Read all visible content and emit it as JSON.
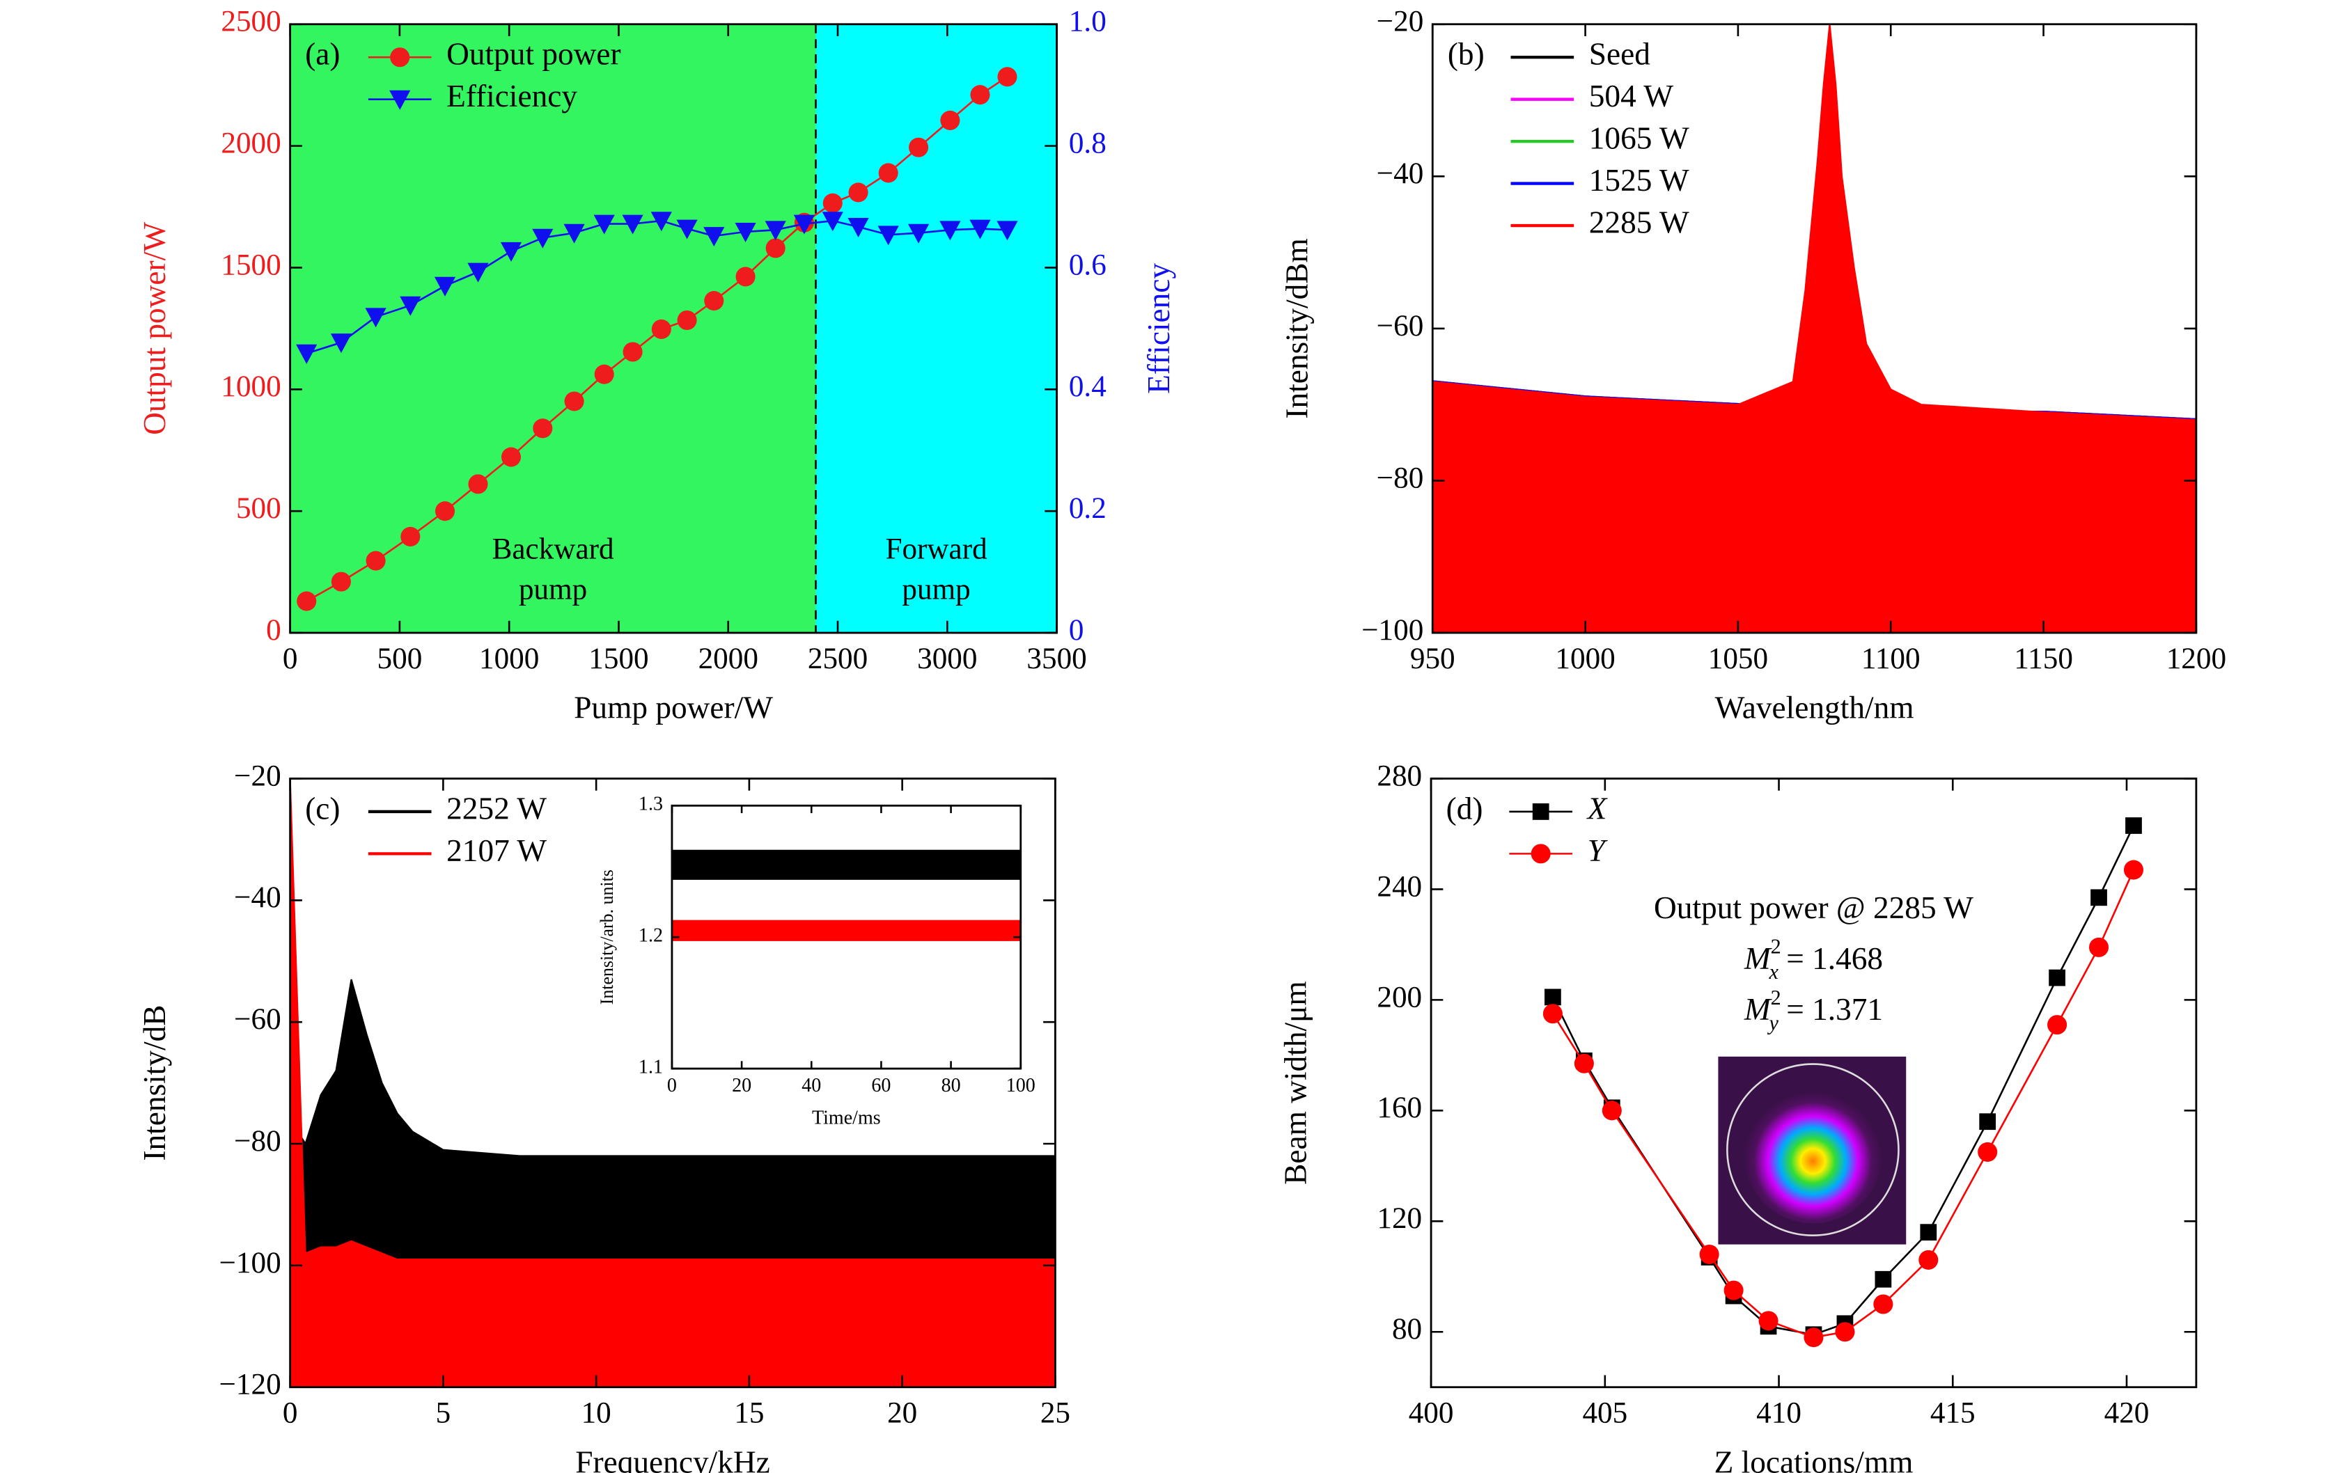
{
  "chart_data": [
    {
      "type": "line",
      "panel_label": "(a)",
      "xlabel": "Pump power/W",
      "ylabel": "Output power/W",
      "y2label": "Efficiency",
      "xlim": [
        0,
        3500
      ],
      "xticks": [
        0,
        500,
        1000,
        1500,
        2000,
        2500,
        3000,
        3500
      ],
      "ylim": [
        0,
        2500
      ],
      "yticks": [
        0,
        500,
        1000,
        1500,
        2000,
        2500
      ],
      "y2lim": [
        0,
        1
      ],
      "y2ticks": [
        0,
        0.2,
        0.4,
        0.6,
        0.8,
        {
          "value": 1,
          "label": "1.0"
        }
      ],
      "legend": "upper left",
      "regions": [
        {
          "x": [
            0,
            2400
          ],
          "color": "#33f560",
          "label": [
            "Backward",
            "pump"
          ]
        },
        {
          "x": [
            2400,
            3500
          ],
          "color": "#00ffff",
          "label": [
            "Forward",
            "pump"
          ]
        }
      ],
      "x": [
        75,
        233,
        391,
        549,
        707,
        858,
        1009,
        1153,
        1297,
        1434,
        1564,
        1695,
        1812,
        1935,
        2079,
        2216,
        2347,
        2477,
        2594,
        2731,
        2869,
        3013,
        3150,
        3274
      ],
      "series": [
        {
          "name": "Output power",
          "color": "#ee1c1c",
          "marker": "circle",
          "values": [
            130,
            210,
            296,
            395,
            500,
            611,
            722,
            840,
            951,
            1062,
            1154,
            1247,
            1284,
            1364,
            1463,
            1580,
            1685,
            1765,
            1809,
            1889,
            1994,
            2105,
            2210,
            2284
          ]
        },
        {
          "name": "Efficiency",
          "color": "#1010ee",
          "marker": "triangle-down",
          "axis": "y2",
          "values": [
            0.459,
            0.477,
            0.519,
            0.538,
            0.57,
            0.593,
            0.627,
            0.649,
            0.657,
            0.672,
            0.672,
            0.677,
            0.664,
            0.652,
            0.659,
            0.662,
            0.672,
            0.677,
            0.667,
            0.654,
            0.657,
            0.662,
            0.664,
            0.662
          ]
        }
      ]
    },
    {
      "type": "line",
      "panel_label": "(b)",
      "xlabel": "Wavelength/nm",
      "ylabel": "Intensity/dBm",
      "xlim": [
        950,
        1200
      ],
      "xticks": [
        950,
        1000,
        1050,
        1100,
        1150,
        1200
      ],
      "ylim": [
        -100,
        -20
      ],
      "yticks": [
        {
          "value": -100,
          "label": "−100"
        },
        {
          "value": -80,
          "label": "−80"
        },
        {
          "value": -60,
          "label": "−60"
        },
        {
          "value": -40,
          "label": "−40"
        },
        {
          "value": -20,
          "label": "−20"
        }
      ],
      "legend": "upper left",
      "x": [
        950,
        1000,
        1050,
        1068,
        1072,
        1076,
        1078,
        1080,
        1082,
        1084,
        1088,
        1092,
        1100,
        1110,
        1150,
        1200
      ],
      "series": [
        {
          "name": "Seed",
          "color": "#000000",
          "values": [
            -67,
            -69,
            -70,
            -71,
            -71,
            -70,
            -50,
            -33,
            -50,
            -70,
            -71,
            -71,
            -71,
            -71,
            -71,
            -72
          ]
        },
        {
          "name": "504 W",
          "color": "#ff00ff",
          "values": [
            -67,
            -69,
            -70,
            -71,
            -70,
            -62,
            -45,
            -30,
            -45,
            -62,
            -70,
            -71,
            -71,
            -71,
            -71,
            -72
          ]
        },
        {
          "name": "1065 W",
          "color": "#22cc22",
          "values": [
            -67,
            -69,
            -70,
            -71,
            -68,
            -55,
            -38,
            -26,
            -38,
            -55,
            -68,
            -71,
            -71,
            -71,
            -71,
            -72
          ]
        },
        {
          "name": "1525 W",
          "color": "#0000ff",
          "values": [
            -67,
            -69,
            -70,
            -70,
            -66,
            -50,
            -35,
            -24,
            -35,
            -50,
            -64,
            -70,
            -71,
            -71,
            -71,
            -72
          ]
        },
        {
          "name": "2285 W",
          "color": "#ff0000",
          "fill": true,
          "values": [
            -67,
            -69,
            -70,
            -67,
            -55,
            -38,
            -28,
            -20,
            -28,
            -40,
            -52,
            -62,
            -68,
            -70,
            -71,
            -72
          ]
        }
      ]
    },
    {
      "type": "line",
      "panel_label": "(c)",
      "xlabel": "Frequency/kHz",
      "ylabel": "Intensity/dB",
      "xlim": [
        0,
        25
      ],
      "xticks": [
        0,
        5,
        10,
        15,
        20,
        25
      ],
      "ylim": [
        -120,
        -20
      ],
      "yticks": [
        {
          "value": -120,
          "label": "−120"
        },
        {
          "value": -100,
          "label": "−100"
        },
        {
          "value": -80,
          "label": "−80"
        },
        {
          "value": -60,
          "label": "−60"
        },
        {
          "value": -40,
          "label": "−40"
        },
        {
          "value": -20,
          "label": "−20"
        }
      ],
      "legend": "upper left",
      "x": [
        0,
        0.5,
        1,
        1.5,
        2,
        2.5,
        3,
        3.5,
        4,
        5,
        7.5,
        10,
        12.5,
        15,
        17.5,
        20,
        22.5,
        25
      ],
      "series": [
        {
          "name": "2252 W",
          "color": "#000000",
          "fill": true,
          "values": [
            -76,
            -80,
            -72,
            -68,
            -53,
            -62,
            -70,
            -75,
            -78,
            -81,
            -82,
            -82,
            -82,
            -82,
            -82,
            -82,
            -82,
            -82
          ]
        },
        {
          "name": "2107 W",
          "color": "#ff0000",
          "fill": true,
          "values": [
            -20,
            -98,
            -97,
            -97,
            -96,
            -97,
            -98,
            -99,
            -99,
            -99,
            -99,
            -99,
            -99,
            -99,
            -99,
            -99,
            -99,
            -99
          ]
        }
      ]
    },
    {
      "type": "line",
      "panel_label": "(d)",
      "xlabel": "Z locations/mm",
      "ylabel": "Beam width/μm",
      "xlim": [
        400,
        422
      ],
      "xticks": [
        400,
        405,
        410,
        415,
        420
      ],
      "ylim": [
        60,
        280
      ],
      "yticks": [
        80,
        120,
        160,
        200,
        240,
        280
      ],
      "legend": "upper left",
      "annotations": [
        {
          "text": "Output power @ 2285 W"
        },
        {
          "symbol": "M",
          "sub": "x",
          "sup": "2",
          "text": " = 1.468"
        },
        {
          "symbol": "M",
          "sub": "y",
          "sup": "2",
          "text": " = 1.371"
        }
      ],
      "x": [
        403.5,
        404.4,
        405.2,
        408,
        408.7,
        409.7,
        411,
        411.9,
        413,
        414.3,
        416,
        418,
        419.2,
        420.2
      ],
      "series": [
        {
          "name": "X",
          "color": "#000000",
          "marker": "square",
          "values": [
            201,
            178,
            161,
            107,
            93,
            82,
            79,
            83,
            99,
            116,
            156,
            208,
            237,
            263
          ]
        },
        {
          "name": "Y",
          "color": "#ff0000",
          "marker": "circle",
          "values": [
            195,
            177,
            160,
            108,
            95,
            84,
            78,
            80,
            90,
            106,
            145,
            191,
            219,
            247
          ]
        }
      ]
    },
    {
      "type": "line",
      "xlabel": "Time/ms",
      "ylabel": "Intensity/arb. units",
      "xlim": [
        0,
        100
      ],
      "xticks": [
        0,
        20,
        40,
        60,
        80,
        100
      ],
      "ylim": [
        1.1,
        1.3
      ],
      "yticks": [
        1.1,
        1.2,
        1.3
      ],
      "x": [
        0,
        25,
        50,
        75,
        100
      ],
      "series": [
        {
          "color": "#000000",
          "line_width": 20,
          "values": [
            1.255,
            1.255,
            1.255,
            1.255,
            1.255
          ]
        },
        {
          "color": "#ff0000",
          "line_width": 14,
          "values": [
            1.205,
            1.205,
            1.205,
            1.205,
            1.205
          ]
        }
      ]
    }
  ]
}
